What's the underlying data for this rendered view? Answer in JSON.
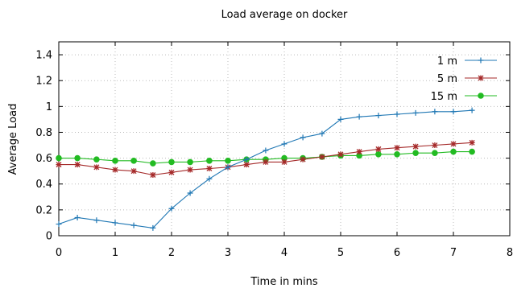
{
  "chart_data": {
    "type": "line",
    "title": "Load average on docker",
    "xlabel": "Time in mins",
    "ylabel": "Average Load",
    "xlim": [
      0,
      8
    ],
    "ylim": [
      0,
      1.5
    ],
    "x_ticks": [
      "0",
      "1",
      "2",
      "3",
      "4",
      "5",
      "6",
      "7",
      "8"
    ],
    "y_ticks": [
      "0",
      "0.2",
      "0.4",
      "0.6",
      "0.8",
      "1",
      "1.2",
      "1.4"
    ],
    "grid": true,
    "legend_position": "top-right",
    "x": [
      0,
      0.33,
      0.67,
      1.0,
      1.33,
      1.67,
      2.0,
      2.33,
      2.67,
      3.0,
      3.33,
      3.67,
      4.0,
      4.33,
      4.67,
      5.0,
      5.33,
      5.67,
      6.0,
      6.33,
      6.67,
      7.0,
      7.33
    ],
    "series": [
      {
        "name": "1 m",
        "color": "#1f77b4",
        "marker": "plus",
        "values": [
          0.09,
          0.14,
          0.12,
          0.1,
          0.08,
          0.06,
          0.21,
          0.33,
          0.44,
          0.53,
          0.59,
          0.66,
          0.71,
          0.76,
          0.79,
          0.9,
          0.92,
          0.93,
          0.94,
          0.95,
          0.96,
          0.96,
          0.97
        ]
      },
      {
        "name": "5 m",
        "color": "#a52a2a",
        "marker": "star",
        "values": [
          0.55,
          0.55,
          0.53,
          0.51,
          0.5,
          0.47,
          0.49,
          0.51,
          0.52,
          0.53,
          0.55,
          0.57,
          0.57,
          0.59,
          0.61,
          0.63,
          0.65,
          0.67,
          0.68,
          0.69,
          0.7,
          0.71,
          0.72
        ]
      },
      {
        "name": "15 m",
        "color": "#22bb22",
        "marker": "circle",
        "values": [
          0.6,
          0.6,
          0.59,
          0.58,
          0.58,
          0.56,
          0.57,
          0.57,
          0.58,
          0.58,
          0.59,
          0.59,
          0.6,
          0.6,
          0.61,
          0.62,
          0.62,
          0.63,
          0.63,
          0.64,
          0.64,
          0.65,
          0.65
        ]
      }
    ]
  }
}
